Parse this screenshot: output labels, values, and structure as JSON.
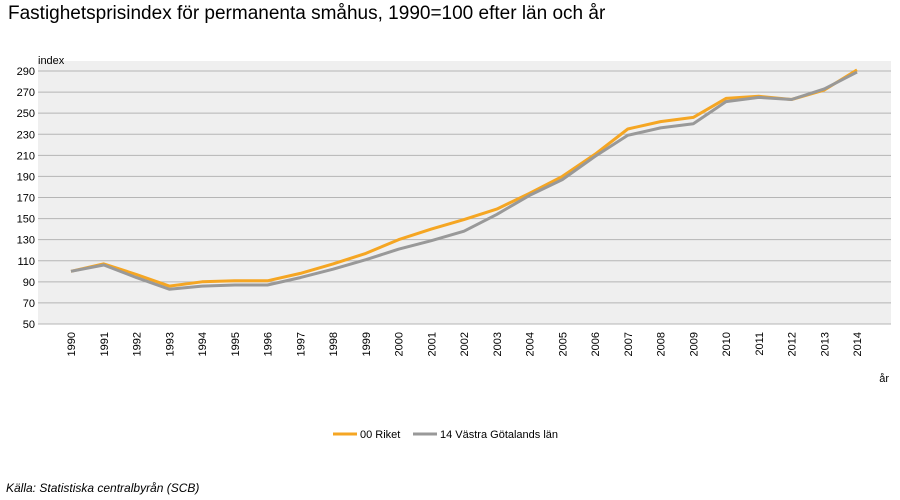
{
  "title": "Fastighetsprisindex för permanenta småhus, 1990=100 efter län och år",
  "source": "Källa: Statistiska centralbyrån (SCB)",
  "chart_data": {
    "type": "line",
    "ylabel": "index",
    "xlabel": "år",
    "ylim": [
      50,
      290
    ],
    "yticks": [
      50,
      70,
      90,
      110,
      130,
      150,
      170,
      190,
      210,
      230,
      250,
      270,
      290
    ],
    "grid": true,
    "legend_position": "bottom",
    "x": [
      "1990",
      "1991",
      "1992",
      "1993",
      "1994",
      "1995",
      "1996",
      "1997",
      "1998",
      "1999",
      "2000",
      "2001",
      "2002",
      "2003",
      "2004",
      "2005",
      "2006",
      "2007",
      "2008",
      "2009",
      "2010",
      "2011",
      "2012",
      "2013",
      "2014"
    ],
    "series": [
      {
        "name": "00 Riket",
        "color": "#f5a623",
        "values": [
          100,
          107,
          97,
          86,
          90,
          91,
          91,
          98,
          107,
          117,
          130,
          140,
          149,
          159,
          174,
          190,
          211,
          235,
          242,
          246,
          264,
          266,
          263,
          272,
          291
        ]
      },
      {
        "name": "14 Västra Götalands län",
        "color": "#999999",
        "values": [
          100,
          106,
          94,
          83,
          86,
          87,
          87,
          94,
          102,
          111,
          121,
          129,
          138,
          154,
          172,
          187,
          209,
          229,
          236,
          240,
          261,
          265,
          263,
          273,
          289
        ]
      }
    ]
  }
}
